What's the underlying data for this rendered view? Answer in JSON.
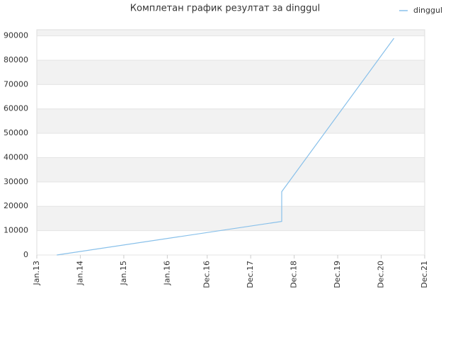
{
  "chart_data": {
    "type": "line",
    "title": "Комплетан график резултат за dinggul",
    "x": [
      2013.46,
      2018.63,
      2018.63,
      2021.21
    ],
    "series": [
      {
        "name": "dinggul",
        "color": "#88c0ea",
        "values": [
          0,
          13800,
          26000,
          89000
        ]
      }
    ],
    "xlim": [
      2013,
      2021.917
    ],
    "xticks": [
      {
        "value": 2013,
        "label": "Jan.13"
      },
      {
        "value": 2014,
        "label": "Jan.14"
      },
      {
        "value": 2015,
        "label": "Jan.15"
      },
      {
        "value": 2016,
        "label": "Jan.16"
      },
      {
        "value": 2016.917,
        "label": "Dec.16"
      },
      {
        "value": 2017.917,
        "label": "Dec.17"
      },
      {
        "value": 2018.917,
        "label": "Dec.18"
      },
      {
        "value": 2019.917,
        "label": "Dec.19"
      },
      {
        "value": 2020.917,
        "label": "Dec.20"
      },
      {
        "value": 2021.917,
        "label": "Dec.21"
      }
    ],
    "ylim": [
      0,
      92500
    ],
    "yticks": [
      0,
      10000,
      20000,
      30000,
      40000,
      50000,
      60000,
      70000,
      80000,
      90000
    ],
    "grid": true,
    "legend": "top-right"
  }
}
